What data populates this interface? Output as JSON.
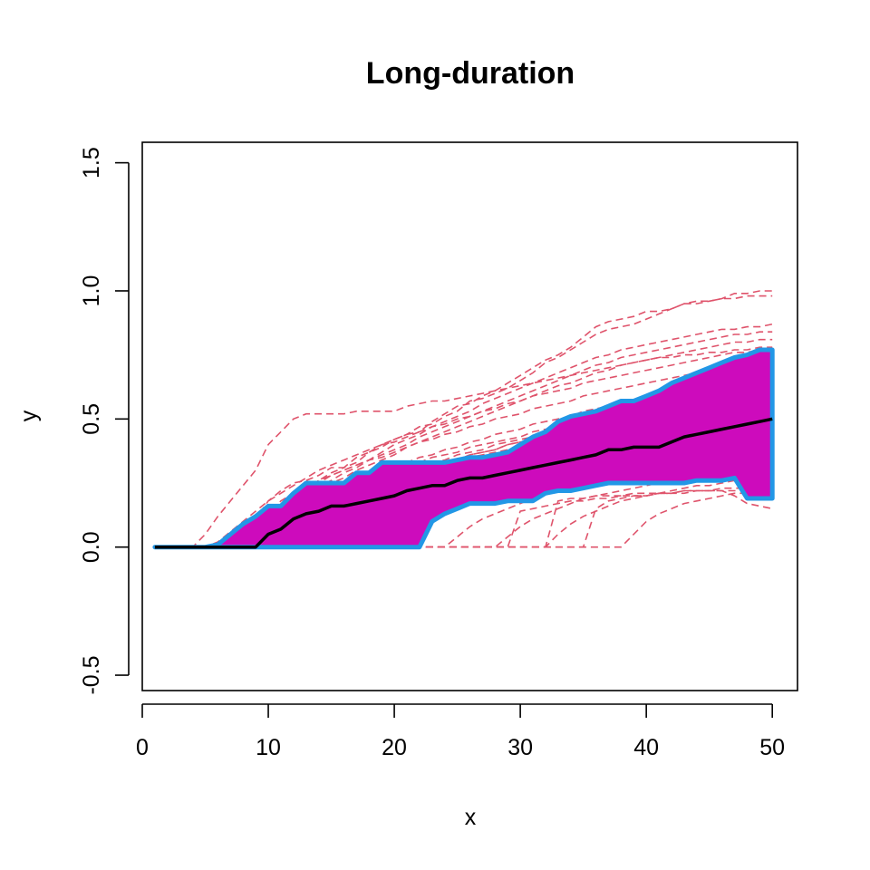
{
  "chart_data": {
    "type": "line",
    "title": "Long-duration",
    "xlabel": "x",
    "ylabel": "y",
    "xlim": [
      0,
      52
    ],
    "ylim": [
      -0.56,
      1.58
    ],
    "xticks": [
      "0",
      "10",
      "20",
      "30",
      "40",
      "50"
    ],
    "yticks": [
      "-0.5",
      "0.0",
      "0.5",
      "1.0",
      "1.5"
    ],
    "grid": false,
    "legend": "none",
    "colors": {
      "band_fill": "#CD0BBC",
      "band_edge": "#2297E6",
      "median": "#000000",
      "sample_paths": "#DF536B"
    },
    "x": [
      1,
      2,
      3,
      4,
      5,
      6,
      7,
      8,
      9,
      10,
      11,
      12,
      13,
      14,
      15,
      16,
      17,
      18,
      19,
      20,
      21,
      22,
      23,
      24,
      25,
      26,
      27,
      28,
      29,
      30,
      31,
      32,
      33,
      34,
      35,
      36,
      37,
      38,
      39,
      40,
      41,
      42,
      43,
      44,
      45,
      46,
      47,
      48,
      49,
      50
    ],
    "series": [
      {
        "role": "band-upper",
        "values": [
          0,
          0,
          0,
          0,
          0,
          0.01,
          0.05,
          0.09,
          0.12,
          0.16,
          0.16,
          0.21,
          0.25,
          0.25,
          0.25,
          0.25,
          0.29,
          0.29,
          0.33,
          0.33,
          0.33,
          0.33,
          0.33,
          0.33,
          0.34,
          0.35,
          0.35,
          0.36,
          0.37,
          0.4,
          0.43,
          0.45,
          0.49,
          0.51,
          0.52,
          0.53,
          0.55,
          0.57,
          0.57,
          0.59,
          0.61,
          0.64,
          0.66,
          0.68,
          0.7,
          0.72,
          0.74,
          0.75,
          0.77,
          0.77
        ]
      },
      {
        "role": "band-lower",
        "values": [
          0,
          0,
          0,
          0,
          0,
          0,
          0,
          0,
          0,
          0,
          0,
          0,
          0,
          0,
          0,
          0,
          0,
          0,
          0,
          0,
          0,
          0,
          0.1,
          0.13,
          0.15,
          0.17,
          0.17,
          0.17,
          0.18,
          0.18,
          0.18,
          0.21,
          0.22,
          0.22,
          0.23,
          0.24,
          0.25,
          0.25,
          0.25,
          0.25,
          0.25,
          0.25,
          0.25,
          0.26,
          0.26,
          0.26,
          0.27,
          0.19,
          0.19,
          0.19
        ]
      },
      {
        "role": "median",
        "values": [
          0,
          0,
          0,
          0,
          0,
          0,
          0,
          0,
          0,
          0.05,
          0.07,
          0.11,
          0.13,
          0.14,
          0.16,
          0.16,
          0.17,
          0.18,
          0.19,
          0.2,
          0.22,
          0.23,
          0.24,
          0.24,
          0.26,
          0.27,
          0.27,
          0.28,
          0.29,
          0.3,
          0.31,
          0.32,
          0.33,
          0.34,
          0.35,
          0.36,
          0.38,
          0.38,
          0.39,
          0.39,
          0.39,
          0.41,
          0.43,
          0.44,
          0.45,
          0.46,
          0.47,
          0.48,
          0.49,
          0.5
        ]
      }
    ],
    "sample_paths": [
      [
        0,
        0,
        0,
        0,
        0,
        0.01,
        0.02,
        0.05,
        0.11,
        0.18,
        0.22,
        0.25,
        0.26,
        0.28,
        0.31,
        0.31,
        0.33,
        0.37,
        0.4,
        0.41,
        0.43,
        0.45,
        0.49,
        0.52,
        0.55,
        0.56,
        0.59,
        0.61,
        0.64,
        0.67,
        0.7,
        0.73,
        0.75,
        0.78,
        0.82,
        0.86,
        0.88,
        0.89,
        0.9,
        0.92,
        0.92,
        0.93,
        0.95,
        0.95,
        0.96,
        0.97,
        0.99,
        0.99,
        1.0,
        1.0
      ],
      [
        0,
        0,
        0,
        0,
        0,
        0,
        0.01,
        0.04,
        0.08,
        0.13,
        0.18,
        0.21,
        0.23,
        0.26,
        0.29,
        0.31,
        0.35,
        0.37,
        0.39,
        0.42,
        0.44,
        0.47,
        0.48,
        0.51,
        0.53,
        0.57,
        0.58,
        0.6,
        0.62,
        0.65,
        0.68,
        0.72,
        0.74,
        0.77,
        0.8,
        0.83,
        0.85,
        0.86,
        0.87,
        0.89,
        0.91,
        0.93,
        0.95,
        0.96,
        0.96,
        0.97,
        0.97,
        0.98,
        0.98,
        0.98
      ],
      [
        0,
        0,
        0,
        0,
        0,
        0.01,
        0.03,
        0.06,
        0.1,
        0.13,
        0.16,
        0.2,
        0.23,
        0.25,
        0.28,
        0.3,
        0.32,
        0.34,
        0.37,
        0.4,
        0.42,
        0.44,
        0.47,
        0.49,
        0.51,
        0.53,
        0.56,
        0.58,
        0.6,
        0.62,
        0.64,
        0.66,
        0.68,
        0.7,
        0.72,
        0.74,
        0.75,
        0.77,
        0.78,
        0.79,
        0.8,
        0.81,
        0.82,
        0.83,
        0.84,
        0.85,
        0.85,
        0.86,
        0.86,
        0.87
      ],
      [
        0,
        0,
        0,
        0,
        0,
        0,
        0.02,
        0.05,
        0.08,
        0.12,
        0.15,
        0.18,
        0.21,
        0.24,
        0.26,
        0.29,
        0.31,
        0.34,
        0.36,
        0.38,
        0.4,
        0.43,
        0.45,
        0.47,
        0.49,
        0.51,
        0.53,
        0.55,
        0.57,
        0.59,
        0.61,
        0.63,
        0.65,
        0.67,
        0.69,
        0.71,
        0.72,
        0.74,
        0.75,
        0.76,
        0.77,
        0.78,
        0.79,
        0.8,
        0.81,
        0.82,
        0.83,
        0.83,
        0.84,
        0.84
      ],
      [
        0,
        0,
        0,
        0,
        0,
        0,
        0.01,
        0.03,
        0.07,
        0.1,
        0.13,
        0.17,
        0.2,
        0.22,
        0.25,
        0.27,
        0.3,
        0.32,
        0.34,
        0.36,
        0.39,
        0.41,
        0.43,
        0.45,
        0.47,
        0.49,
        0.51,
        0.53,
        0.55,
        0.57,
        0.59,
        0.61,
        0.63,
        0.64,
        0.66,
        0.68,
        0.69,
        0.71,
        0.72,
        0.73,
        0.74,
        0.75,
        0.76,
        0.77,
        0.78,
        0.79,
        0.8,
        0.8,
        0.81,
        0.81
      ],
      [
        0,
        0,
        0,
        0,
        0.05,
        0.12,
        0.18,
        0.24,
        0.3,
        0.4,
        0.45,
        0.5,
        0.52,
        0.52,
        0.52,
        0.52,
        0.53,
        0.53,
        0.53,
        0.53,
        0.55,
        0.56,
        0.57,
        0.57,
        0.58,
        0.59,
        0.6,
        0.61,
        0.62,
        0.63,
        0.64,
        0.65,
        0.66,
        0.67,
        0.68,
        0.69,
        0.7,
        0.71,
        0.72,
        0.73,
        0.74,
        0.74,
        0.75,
        0.75,
        0.76,
        0.76,
        0.77,
        0.77,
        0.78,
        0.78
      ],
      [
        0,
        0,
        0,
        0,
        0,
        0.02,
        0.06,
        0.1,
        0.14,
        0.18,
        0.21,
        0.24,
        0.27,
        0.3,
        0.32,
        0.34,
        0.36,
        0.38,
        0.4,
        0.42,
        0.44,
        0.45,
        0.47,
        0.48,
        0.5,
        0.51,
        0.53,
        0.54,
        0.56,
        0.57,
        0.59,
        0.6,
        0.61,
        0.62,
        0.64,
        0.65,
        0.66,
        0.67,
        0.68,
        0.69,
        0.7,
        0.71,
        0.72,
        0.73,
        0.74,
        0.75,
        0.76,
        0.76,
        0.77,
        0.77
      ],
      [
        0,
        0,
        0,
        0,
        0,
        0,
        0.03,
        0.06,
        0.1,
        0.14,
        0.17,
        0.2,
        0.23,
        0.26,
        0.28,
        0.3,
        0.32,
        0.34,
        0.35,
        0.37,
        0.39,
        0.41,
        0.42,
        0.44,
        0.45,
        0.47,
        0.48,
        0.5,
        0.51,
        0.52,
        0.54,
        0.55,
        0.56,
        0.57,
        0.59,
        0.6,
        0.61,
        0.62,
        0.63,
        0.64,
        0.65,
        0.66,
        0.67,
        0.68,
        0.69,
        0.7,
        0.71,
        0.71,
        0.72,
        0.72
      ],
      [
        0,
        0,
        0,
        0,
        0,
        0,
        0,
        0.02,
        0.05,
        0.08,
        0.11,
        0.14,
        0.17,
        0.19,
        0.22,
        0.24,
        0.26,
        0.28,
        0.3,
        0.31,
        0.33,
        0.35,
        0.36,
        0.38,
        0.39,
        0.41,
        0.42,
        0.44,
        0.45,
        0.46,
        0.48,
        0.49,
        0.5,
        0.51,
        0.53,
        0.54,
        0.55,
        0.56,
        0.57,
        0.58,
        0.59,
        0.6,
        0.61,
        0.62,
        0.63,
        0.64,
        0.65,
        0.66,
        0.66,
        0.67
      ],
      [
        0,
        0,
        0,
        0,
        0,
        0,
        0,
        0.01,
        0.03,
        0.06,
        0.09,
        0.12,
        0.14,
        0.17,
        0.19,
        0.21,
        0.23,
        0.25,
        0.27,
        0.28,
        0.3,
        0.31,
        0.33,
        0.34,
        0.36,
        0.37,
        0.38,
        0.4,
        0.41,
        0.42,
        0.43,
        0.44,
        0.46,
        0.47,
        0.48,
        0.49,
        0.5,
        0.51,
        0.52,
        0.53,
        0.54,
        0.55,
        0.56,
        0.57,
        0.58,
        0.59,
        0.6,
        0.6,
        0.61,
        0.61
      ],
      [
        0,
        0,
        0,
        0,
        0,
        0,
        0,
        0,
        0.02,
        0.05,
        0.08,
        0.11,
        0.13,
        0.16,
        0.18,
        0.2,
        0.22,
        0.23,
        0.25,
        0.26,
        0.28,
        0.29,
        0.31,
        0.32,
        0.33,
        0.35,
        0.36,
        0.37,
        0.38,
        0.39,
        0.4,
        0.41,
        0.42,
        0.43,
        0.44,
        0.45,
        0.46,
        0.47,
        0.48,
        0.49,
        0.5,
        0.51,
        0.52,
        0.53,
        0.54,
        0.55,
        0.56,
        0.56,
        0.57,
        0.57
      ],
      [
        0,
        0,
        0,
        0,
        0,
        0,
        0.01,
        0.03,
        0.06,
        0.09,
        0.12,
        0.15,
        0.17,
        0.2,
        0.22,
        0.24,
        0.25,
        0.27,
        0.29,
        0.3,
        0.32,
        0.33,
        0.35,
        0.36,
        0.37,
        0.39,
        0.4,
        0.41,
        0.42,
        0.43,
        0.45,
        0.46,
        0.47,
        0.48,
        0.49,
        0.5,
        0.51,
        0.52,
        0.53,
        0.54,
        0.55,
        0.56,
        0.57,
        0.58,
        0.59,
        0.6,
        0.61,
        0.61,
        0.62,
        0.62
      ],
      [
        0,
        0,
        0,
        0,
        0,
        0,
        0,
        0.02,
        0.04,
        0.07,
        0.1,
        0.12,
        0.15,
        0.17,
        0.19,
        0.21,
        0.23,
        0.24,
        0.26,
        0.27,
        0.29,
        0.3,
        0.32,
        0.33,
        0.34,
        0.36,
        0.37,
        0.38,
        0.4,
        0.41,
        0.42,
        0.43,
        0.44,
        0.45,
        0.46,
        0.48,
        0.49,
        0.5,
        0.51,
        0.52,
        0.53,
        0.54,
        0.55,
        0.56,
        0.57,
        0.58,
        0.59,
        0.59,
        0.6,
        0.6
      ],
      [
        0,
        0,
        0,
        0,
        0,
        0,
        0,
        0,
        0,
        0,
        0.03,
        0.08,
        0.12,
        0.15,
        0.17,
        0.19,
        0.21,
        0.23,
        0.25,
        0.27,
        0.28,
        0.3,
        0.31,
        0.33,
        0.34,
        0.36,
        0.37,
        0.38,
        0.4,
        0.41,
        0.42,
        0.44,
        0.45,
        0.46,
        0.47,
        0.48,
        0.5,
        0.51,
        0.52,
        0.53,
        0.54,
        0.55,
        0.56,
        0.57,
        0.58,
        0.59,
        0.6,
        0.61,
        0.62,
        0.62
      ],
      [
        0,
        0,
        0,
        0,
        0,
        0,
        0,
        0,
        0,
        0,
        0,
        0,
        0,
        0.03,
        0.06,
        0.09,
        0.11,
        0.13,
        0.15,
        0.17,
        0.19,
        0.21,
        0.22,
        0.24,
        0.25,
        0.27,
        0.28,
        0.29,
        0.31,
        0.32,
        0.33,
        0.35,
        0.36,
        0.37,
        0.38,
        0.39,
        0.4,
        0.41,
        0.43,
        0.44,
        0.45,
        0.46,
        0.47,
        0.48,
        0.49,
        0.5,
        0.51,
        0.51,
        0.52,
        0.52
      ],
      [
        0,
        0,
        0,
        0,
        0,
        0,
        0,
        0,
        0,
        0,
        0,
        0,
        0,
        0,
        0,
        0,
        0,
        0,
        0,
        0,
        0,
        0,
        0.1,
        0.13,
        0.15,
        0.17,
        0.18,
        0.2,
        0.21,
        0.23,
        0.24,
        0.25,
        0.26,
        0.27,
        0.29,
        0.3,
        0.31,
        0.32,
        0.33,
        0.34,
        0.35,
        0.36,
        0.37,
        0.38,
        0.39,
        0.4,
        0.41,
        0.41,
        0.42,
        0.42
      ],
      [
        0,
        0,
        0,
        0,
        0,
        0,
        0,
        0,
        0,
        0,
        0,
        0,
        0,
        0,
        0,
        0,
        0,
        0,
        0,
        0,
        0,
        0,
        0,
        0,
        0.04,
        0.08,
        0.11,
        0.13,
        0.15,
        0.17,
        0.19,
        0.21,
        0.22,
        0.23,
        0.24,
        0.25,
        0.26,
        0.27,
        0.28,
        0.29,
        0.3,
        0.31,
        0.32,
        0.33,
        0.34,
        0.35,
        0.36,
        0.36,
        0.37,
        0.37
      ],
      [
        0,
        0,
        0,
        0,
        0,
        0,
        0,
        0,
        0,
        0,
        0,
        0,
        0,
        0,
        0,
        0,
        0,
        0,
        0,
        0,
        0,
        0,
        0,
        0,
        0,
        0,
        0,
        0,
        0.04,
        0.08,
        0.11,
        0.13,
        0.15,
        0.17,
        0.19,
        0.2,
        0.21,
        0.22,
        0.23,
        0.24,
        0.25,
        0.26,
        0.27,
        0.28,
        0.29,
        0.3,
        0.31,
        0.31,
        0.32,
        0.32
      ],
      [
        0,
        0,
        0,
        0,
        0,
        0,
        0,
        0,
        0,
        0,
        0,
        0,
        0,
        0,
        0,
        0,
        0,
        0,
        0,
        0,
        0,
        0,
        0,
        0,
        0,
        0,
        0,
        0,
        0,
        0,
        0,
        0,
        0.05,
        0.09,
        0.12,
        0.14,
        0.16,
        0.18,
        0.19,
        0.2,
        0.21,
        0.22,
        0.23,
        0.24,
        0.24,
        0.25,
        0.26,
        0.26,
        0.27,
        0.27
      ],
      [
        0,
        0,
        0,
        0,
        0,
        0,
        0,
        0,
        0,
        0,
        0,
        0,
        0,
        0,
        0,
        0,
        0,
        0,
        0,
        0,
        0,
        0,
        0,
        0,
        0,
        0,
        0,
        0,
        0,
        0,
        0,
        0,
        0,
        0,
        0,
        0,
        0,
        0,
        0.05,
        0.1,
        0.13,
        0.15,
        0.17,
        0.18,
        0.19,
        0.2,
        0.21,
        0.21,
        0.22,
        0.22
      ],
      [
        0,
        0,
        0,
        0,
        0,
        0,
        0,
        0,
        0,
        0,
        0,
        0,
        0,
        0,
        0,
        0,
        0,
        0,
        0,
        0,
        0,
        0,
        0,
        0,
        0,
        0,
        0,
        0,
        0,
        0,
        0,
        0,
        0,
        0,
        0,
        0.15,
        0.18,
        0.19,
        0.2,
        0.2,
        0.21,
        0.21,
        0.22,
        0.22,
        0.22,
        0.23,
        0.23,
        0.23,
        0.23,
        0.24
      ],
      [
        0,
        0,
        0,
        0,
        0,
        0,
        0,
        0,
        0,
        0,
        0,
        0,
        0,
        0,
        0,
        0,
        0,
        0,
        0,
        0,
        0,
        0,
        0,
        0,
        0,
        0,
        0,
        0,
        0,
        0,
        0,
        0,
        0.18,
        0.19,
        0.19,
        0.2,
        0.2,
        0.2,
        0.21,
        0.21,
        0.21,
        0.21,
        0.22,
        0.22,
        0.22,
        0.22,
        0.2,
        0.17,
        0.16,
        0.15
      ],
      [
        0,
        0,
        0,
        0,
        0,
        0,
        0,
        0,
        0,
        0,
        0,
        0,
        0,
        0,
        0,
        0,
        0,
        0,
        0,
        0,
        0,
        0,
        0,
        0,
        0,
        0,
        0,
        0,
        0,
        0.14,
        0.15,
        0.16,
        0.17,
        0.18,
        0.18,
        0.19,
        0.19,
        0.2,
        0.2,
        0.2,
        0.21,
        0.21,
        0.21,
        0.22,
        0.22,
        0.22,
        0.22,
        0.22,
        0.22,
        0.22
      ]
    ]
  }
}
